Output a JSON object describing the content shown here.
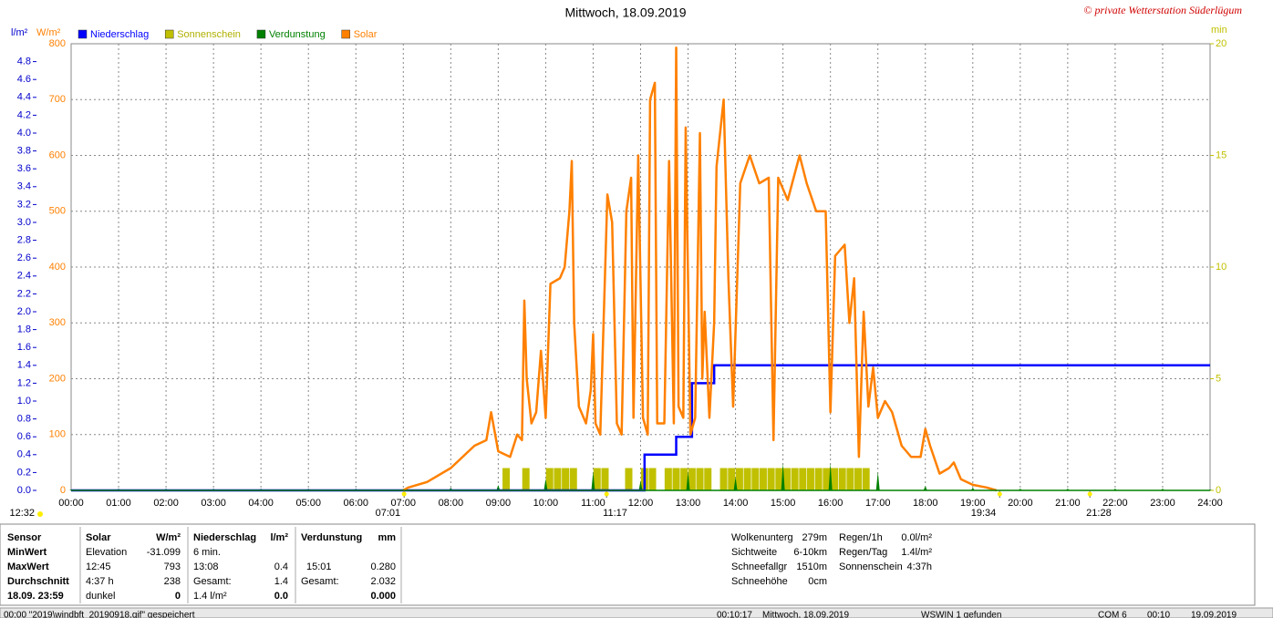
{
  "chart_data": {
    "type": "combo",
    "title": "Mittwoch, 18.09.2019",
    "copyright": "© private Wetterstation Süderlügum",
    "y_label": "W/m²",
    "y2_label": "l/m²",
    "y3_label": "min",
    "grid": true,
    "xlim": [
      0,
      24
    ],
    "xticks": [
      {
        "value": 0,
        "label": "00:00"
      },
      {
        "value": 1,
        "label": "01:00"
      },
      {
        "value": 2,
        "label": "02:00"
      },
      {
        "value": 3,
        "label": "03:00"
      },
      {
        "value": 4,
        "label": "04:00"
      },
      {
        "value": 5,
        "label": "05:00"
      },
      {
        "value": 6,
        "label": "06:00"
      },
      {
        "value": 7,
        "label": "07:00"
      },
      {
        "value": 8,
        "label": "08:00"
      },
      {
        "value": 9,
        "label": "09:00"
      },
      {
        "value": 10,
        "label": "10:00"
      },
      {
        "value": 11,
        "label": "11:00"
      },
      {
        "value": 12,
        "label": "12:00"
      },
      {
        "value": 13,
        "label": "13:00"
      },
      {
        "value": 14,
        "label": "14:00"
      },
      {
        "value": 15,
        "label": "15:00"
      },
      {
        "value": 16,
        "label": "16:00"
      },
      {
        "value": 17,
        "label": "17:00"
      },
      {
        "value": 18,
        "label": "18:00"
      },
      {
        "value": 19,
        "label": "19:00"
      },
      {
        "value": 20,
        "label": "20:00"
      },
      {
        "value": 21,
        "label": "21:00"
      },
      {
        "value": 22,
        "label": "22:00"
      },
      {
        "value": 23,
        "label": "23:00"
      },
      {
        "value": 24,
        "label": "24:00"
      }
    ],
    "ylim": [
      0,
      800
    ],
    "yticks": [
      0,
      100,
      200,
      300,
      400,
      500,
      600,
      700,
      800
    ],
    "y2lim": [
      0,
      5
    ],
    "y2ticks": [
      {
        "value": 0,
        "label": "0.0"
      },
      0.2,
      0.4,
      0.6,
      0.8,
      {
        "value": 1,
        "label": "1.0"
      },
      1.2,
      1.4,
      1.6,
      1.8,
      {
        "value": 2,
        "label": "2.0"
      },
      2.2,
      2.4,
      2.6,
      2.8,
      {
        "value": 3,
        "label": "3.0"
      },
      3.2,
      3.4,
      3.6,
      3.8,
      {
        "value": 4,
        "label": "4.0"
      },
      4.2,
      4.4,
      4.6,
      4.8
    ],
    "y3lim": [
      0,
      20
    ],
    "y3ticks": [
      0,
      5,
      10,
      15,
      20
    ],
    "series": [
      {
        "name": "Niederschlag",
        "color": "#0000ff",
        "type": "step",
        "axis": "y2",
        "x": [
          0,
          12.0,
          12.083,
          12.75,
          13.083,
          13.55,
          24
        ],
        "values": [
          0,
          0,
          0.4,
          0.6,
          1.2,
          1.4,
          1.4
        ]
      },
      {
        "name": "Sonnenschein",
        "color": "#c0c000",
        "type": "bar",
        "axis": "y3",
        "x": [
          9.167,
          9.583,
          10.083,
          10.25,
          10.417,
          10.583,
          11.083,
          11.25,
          11.75,
          12.083,
          12.25,
          12.583,
          12.75,
          12.917,
          13.083,
          13.25,
          13.417,
          13.75,
          13.917,
          14.083,
          14.25,
          14.417,
          14.583,
          14.75,
          14.917,
          15.083,
          15.25,
          15.417,
          15.583,
          15.75,
          15.917,
          16.083,
          16.25,
          16.417,
          16.583,
          16.75
        ],
        "values": [
          1,
          1,
          1,
          1,
          1,
          1,
          1,
          1,
          1,
          1,
          1,
          1,
          1,
          1,
          1,
          1,
          1,
          1,
          1,
          1,
          1,
          1,
          1,
          1,
          1,
          1,
          1,
          1,
          1,
          1,
          1,
          1,
          1,
          1,
          1,
          1
        ]
      },
      {
        "name": "Verdunstung",
        "color": "#008000",
        "type": "spike",
        "axis": "y2",
        "x": [
          0,
          1,
          2,
          3,
          4,
          5,
          6,
          7,
          8,
          9,
          10,
          11,
          12,
          13,
          14,
          15,
          16,
          17,
          18,
          19,
          20,
          21,
          22,
          23,
          24
        ],
        "values": [
          0,
          0.01,
          0.01,
          0.01,
          0.01,
          0.01,
          0.01,
          0.01,
          0.02,
          0.05,
          0.12,
          0.2,
          0.1,
          0.2,
          0.14,
          0.3,
          0.3,
          0.2,
          0.04,
          0.02,
          0.01,
          0.01,
          0.01,
          0.01,
          0
        ]
      },
      {
        "name": "Solar",
        "color": "#ff8000",
        "type": "line",
        "axis": "y",
        "x": [
          7.0,
          7.1,
          7.5,
          8.0,
          8.25,
          8.5,
          8.75,
          8.85,
          9.0,
          9.25,
          9.4,
          9.5,
          9.55,
          9.6,
          9.7,
          9.8,
          9.9,
          10.0,
          10.1,
          10.3,
          10.4,
          10.5,
          10.55,
          10.6,
          10.7,
          10.85,
          10.95,
          11.0,
          11.05,
          11.15,
          11.3,
          11.4,
          11.5,
          11.6,
          11.7,
          11.8,
          11.85,
          11.95,
          12.05,
          12.15,
          12.2,
          12.3,
          12.35,
          12.5,
          12.6,
          12.7,
          12.75,
          12.8,
          12.9,
          12.95,
          13.05,
          13.15,
          13.25,
          13.3,
          13.35,
          13.45,
          13.55,
          13.6,
          13.75,
          13.85,
          13.95,
          14.1,
          14.3,
          14.5,
          14.7,
          14.8,
          14.9,
          15.1,
          15.35,
          15.5,
          15.7,
          15.9,
          16.0,
          16.1,
          16.3,
          16.4,
          16.5,
          16.6,
          16.7,
          16.8,
          16.9,
          17.0,
          17.15,
          17.3,
          17.5,
          17.7,
          17.9,
          18.0,
          18.1,
          18.3,
          18.5,
          18.6,
          18.75,
          19.0,
          19.3,
          19.5
        ],
        "values": [
          0,
          5,
          15,
          40,
          60,
          80,
          90,
          140,
          70,
          60,
          100,
          90,
          340,
          200,
          120,
          140,
          250,
          130,
          370,
          380,
          400,
          500,
          590,
          300,
          150,
          120,
          180,
          280,
          120,
          100,
          530,
          480,
          120,
          100,
          500,
          560,
          130,
          600,
          130,
          100,
          700,
          730,
          120,
          120,
          590,
          120,
          793,
          150,
          130,
          650,
          100,
          130,
          640,
          200,
          320,
          130,
          300,
          580,
          700,
          380,
          150,
          550,
          600,
          550,
          560,
          90,
          560,
          520,
          600,
          550,
          500,
          500,
          140,
          420,
          440,
          300,
          380,
          60,
          320,
          150,
          220,
          130,
          160,
          140,
          80,
          60,
          60,
          110,
          80,
          30,
          40,
          50,
          20,
          10,
          5,
          0
        ]
      }
    ],
    "annotations": [
      {
        "text": "07:01",
        "x": 7.017
      },
      {
        "text": "11:17",
        "x": 11.283
      },
      {
        "text": "19:34",
        "x": 19.567
      },
      {
        "text": "21:28",
        "x": 21.467
      }
    ],
    "left_note": "12:32"
  },
  "table": {
    "rows": [
      [
        "Sensor",
        "Solar",
        "W/m²",
        "Niederschlag",
        "l/m²",
        "Verdunstung",
        "mm"
      ],
      [
        "MinWert",
        "Elevation",
        "-31.099",
        "6 min.",
        null,
        null,
        null
      ],
      [
        "MaxWert",
        "12:45",
        "793",
        "13:08",
        "0.4",
        "15:01",
        "0.280"
      ],
      [
        "Durchschnitt",
        "4:37 h",
        "238",
        "Gesamt:",
        "1.4",
        "Gesamt:",
        "2.032"
      ],
      [
        "18.09. 23:59",
        "dunkel",
        "0",
        "1.4 l/m²",
        "0.0",
        null,
        "0.000"
      ]
    ]
  },
  "weather": {
    "rows": [
      [
        "Wolkenunterg",
        "279m"
      ],
      [
        "Sichtweite",
        "6-10km"
      ],
      [
        "Schneefallgr",
        "1510m"
      ],
      [
        "Schneehöhe",
        "0cm"
      ]
    ]
  },
  "rain": {
    "rows": [
      [
        "Regen/1h",
        "0.0l/m²"
      ],
      [
        "Regen/Tag",
        "1.4l/m²"
      ],
      [
        "Sonnenschein",
        "4:37h"
      ]
    ]
  },
  "status": [
    "00:00  \"2019\\windbft_20190918.gif\" gespeichert",
    "00:10:17",
    "Mittwoch, 18.09.2019",
    "WSWIN 1 gefunden",
    "COM 6",
    "00:10",
    "19.09.2019"
  ]
}
